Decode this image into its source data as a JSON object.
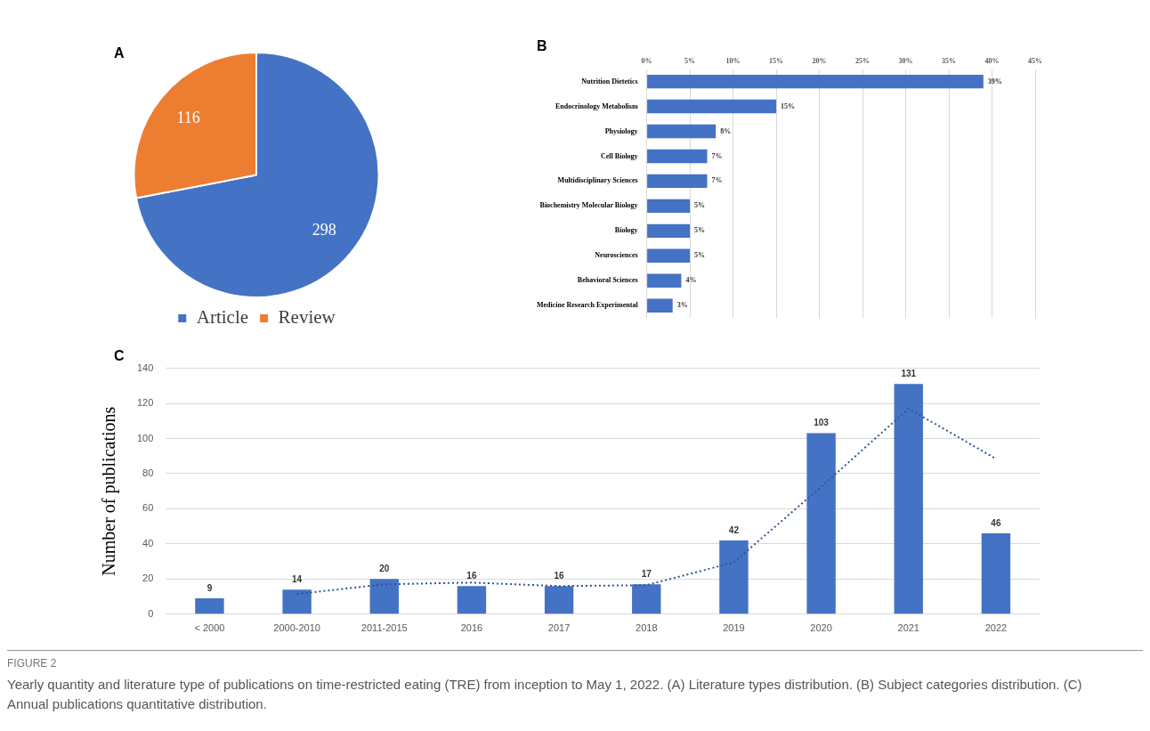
{
  "chart_data": [
    {
      "type": "pie",
      "title": "A",
      "categories": [
        "Article",
        "Review"
      ],
      "values": [
        298,
        116
      ],
      "colors": [
        "#4472c4",
        "#ed7d31"
      ],
      "data_labels": true,
      "legend": "bottom"
    },
    {
      "type": "bar",
      "title": "B",
      "orientation": "horizontal",
      "categories": [
        "Nutrition Dietetics",
        "Endocrinology Metabolism",
        "Physiology",
        "Cell Biology",
        "Multidisciplinary Sciences",
        "Biochemistry Molecular Biology",
        "Biology",
        "Neurosciences",
        "Behavioral Sciences",
        "Medicine Research Experimental"
      ],
      "series": [
        {
          "color": "#4472c4",
          "values": [
            39,
            15,
            8,
            7,
            7,
            5,
            5,
            5,
            4,
            3
          ],
          "value_labels": [
            "39%",
            "15%",
            "8%",
            "7%",
            "7%",
            "5%",
            "5%",
            "5%",
            "4%",
            "3%"
          ]
        }
      ],
      "xlim": [
        0,
        45
      ],
      "xticks": [
        {
          "value": 0,
          "label": "0%"
        },
        {
          "value": 5,
          "label": "5%"
        },
        {
          "value": 10,
          "label": "10%"
        },
        {
          "value": 15,
          "label": "15%"
        },
        {
          "value": 20,
          "label": "20%"
        },
        {
          "value": 25,
          "label": "25%"
        },
        {
          "value": 30,
          "label": "30%"
        },
        {
          "value": 35,
          "label": "35%"
        },
        {
          "value": 40,
          "label": "40%"
        },
        {
          "value": 45,
          "label": "45%"
        }
      ],
      "grid": "x"
    },
    {
      "type": "bar",
      "title": "C",
      "ylabel": "Number of publications",
      "categories": [
        "< 2000",
        "2000-2010",
        "2011-2015",
        "2016",
        "2017",
        "2018",
        "2019",
        "2020",
        "2021",
        "2022"
      ],
      "series": [
        {
          "type": "bar",
          "color": "#4472c4",
          "values": [
            9,
            14,
            20,
            16,
            16,
            17,
            42,
            103,
            131,
            46
          ],
          "value_labels": [
            "9",
            "14",
            "20",
            "16",
            "16",
            "17",
            "42",
            "103",
            "131",
            "46"
          ]
        },
        {
          "type": "line",
          "color": "#2f5597",
          "line_style": "dotted",
          "values": [
            null,
            11.5,
            17,
            18,
            16,
            16.5,
            29.5,
            72.5,
            117,
            88.5
          ]
        }
      ],
      "ylim": [
        0,
        140
      ],
      "yticks": [
        0,
        20,
        40,
        60,
        80,
        100,
        120,
        140
      ],
      "grid": "y",
      "annotations": [
        "FIGURE 2",
        "Yearly quantity and literature type of publications on time-restricted eating (TRE) from inception to May 1, 2022. (A) Literature types distribution. (B) Subject categories distribution. (C) Annual publications quantitative distribution."
      ]
    }
  ]
}
